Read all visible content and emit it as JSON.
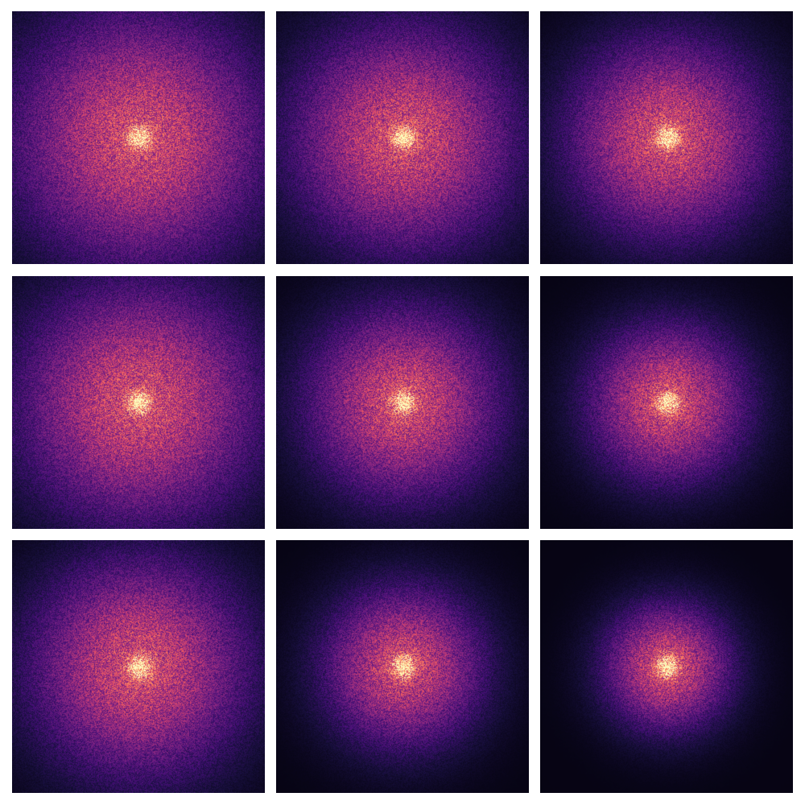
{
  "colormap": {
    "name": "magma",
    "stops": [
      "#000004",
      "#180f3d",
      "#440f76",
      "#721f81",
      "#9e2f7f",
      "#cd4071",
      "#f1605d",
      "#fd9668",
      "#feca8d",
      "#fcfdbf"
    ]
  },
  "background_color": "#ffffff",
  "panels": [
    {
      "id": "row1-col1",
      "spread": 1.0,
      "peak": 1.0,
      "seed": 11
    },
    {
      "id": "row1-col2",
      "spread": 0.88,
      "peak": 1.0,
      "seed": 23
    },
    {
      "id": "row1-col3",
      "spread": 0.78,
      "peak": 1.0,
      "seed": 37
    },
    {
      "id": "row2-col1",
      "spread": 0.95,
      "peak": 1.0,
      "seed": 41
    },
    {
      "id": "row2-col2",
      "spread": 0.75,
      "peak": 1.0,
      "seed": 53
    },
    {
      "id": "row2-col3",
      "spread": 0.62,
      "peak": 1.0,
      "seed": 67
    },
    {
      "id": "row3-col1",
      "spread": 0.85,
      "peak": 1.0,
      "seed": 71
    },
    {
      "id": "row3-col2",
      "spread": 0.62,
      "peak": 1.0,
      "seed": 83
    },
    {
      "id": "row3-col3",
      "spread": 0.5,
      "peak": 1.0,
      "seed": 97
    }
  ]
}
